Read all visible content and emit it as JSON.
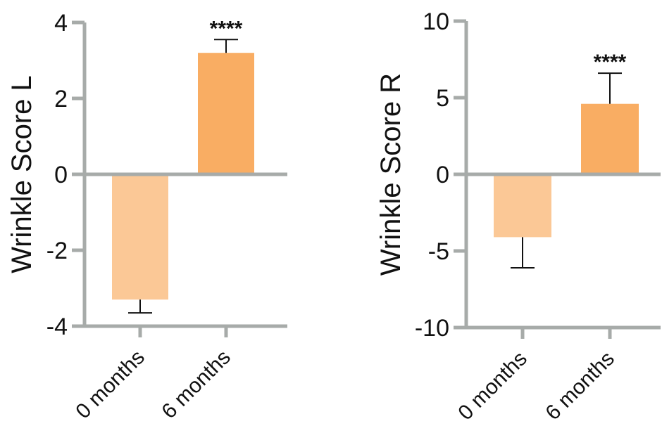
{
  "chart_data": [
    {
      "type": "bar",
      "categories": [
        "0 months",
        "6 months"
      ],
      "values": [
        -3.3,
        3.2
      ],
      "errors": [
        0.35,
        0.35
      ],
      "ylabel": "Wrinkle Score L",
      "ylim": [
        -4,
        4
      ],
      "yticks": [
        -4,
        -2,
        0,
        2,
        4
      ],
      "ytick_labels": [
        "-4",
        "-2",
        "0",
        "2",
        "4"
      ],
      "significance": [
        "",
        "****"
      ],
      "colors": [
        "#fbc896",
        "#f9ad63"
      ],
      "axis_color": "#a7aba9",
      "grid": false,
      "legend": false
    },
    {
      "type": "bar",
      "categories": [
        "0 months",
        "6 months"
      ],
      "values": [
        -4.1,
        4.6
      ],
      "errors": [
        2.0,
        2.0
      ],
      "ylabel": "Wrinkle Score R",
      "ylim": [
        -10,
        10
      ],
      "yticks": [
        -10,
        -5,
        0,
        5,
        10
      ],
      "ytick_labels": [
        "-10",
        "-5",
        "0",
        "5",
        "10"
      ],
      "significance": [
        "",
        "****"
      ],
      "colors": [
        "#fbc896",
        "#f9ad63"
      ],
      "axis_color": "#a7aba9",
      "grid": false,
      "legend": false
    }
  ]
}
